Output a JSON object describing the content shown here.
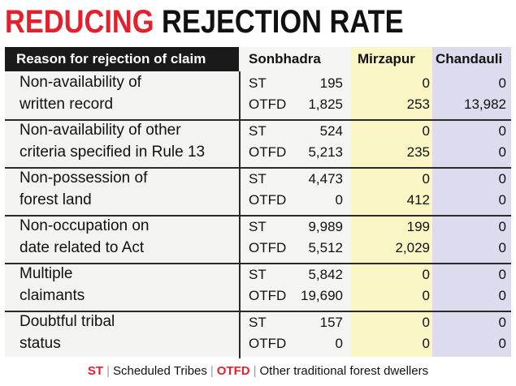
{
  "title": {
    "part1": "REDUCING",
    "part2": "REJECTION RATE"
  },
  "chart_data": {
    "type": "table",
    "title": "REDUCING REJECTION RATE",
    "columns": [
      "Reason for rejection of claim",
      "Sonbhadra",
      "Mirzapur",
      "Chandauli"
    ],
    "rows": [
      {
        "reason": [
          "Non-availability of",
          "written record"
        ],
        "entries": [
          {
            "cat": "ST",
            "sonbhadra": "195",
            "mirzapur": "0",
            "chandauli": "0"
          },
          {
            "cat": "OTFD",
            "sonbhadra": "1,825",
            "mirzapur": "253",
            "chandauli": "13,982"
          }
        ]
      },
      {
        "reason": [
          "Non-availability of other",
          "criteria specified in Rule 13"
        ],
        "entries": [
          {
            "cat": "ST",
            "sonbhadra": "524",
            "mirzapur": "0",
            "chandauli": "0"
          },
          {
            "cat": "OTFD",
            "sonbhadra": "5,213",
            "mirzapur": "235",
            "chandauli": "0"
          }
        ]
      },
      {
        "reason": [
          "Non-possession of",
          "forest land"
        ],
        "entries": [
          {
            "cat": "ST",
            "sonbhadra": "4,473",
            "mirzapur": "0",
            "chandauli": "0"
          },
          {
            "cat": "OTFD",
            "sonbhadra": "0",
            "mirzapur": "412",
            "chandauli": "0"
          }
        ]
      },
      {
        "reason": [
          "Non-occupation on",
          "date related to Act"
        ],
        "entries": [
          {
            "cat": "ST",
            "sonbhadra": "9,989",
            "mirzapur": "199",
            "chandauli": "0"
          },
          {
            "cat": "OTFD",
            "sonbhadra": "5,512",
            "mirzapur": "2,029",
            "chandauli": "0"
          }
        ]
      },
      {
        "reason": [
          "Multiple",
          "claimants"
        ],
        "entries": [
          {
            "cat": "ST",
            "sonbhadra": "5,842",
            "mirzapur": "0",
            "chandauli": "0"
          },
          {
            "cat": "OTFD",
            "sonbhadra": "19,690",
            "mirzapur": "0",
            "chandauli": "0"
          }
        ]
      },
      {
        "reason": [
          "Doubtful tribal",
          "status"
        ],
        "entries": [
          {
            "cat": "ST",
            "sonbhadra": "157",
            "mirzapur": "0",
            "chandauli": "0"
          },
          {
            "cat": "OTFD",
            "sonbhadra": "0",
            "mirzapur": "0",
            "chandauli": "0"
          }
        ]
      }
    ]
  },
  "legend": {
    "st_abbr": "ST",
    "st_text": "Scheduled Tribes",
    "otfd_abbr": "OTFD",
    "otfd_text": "Other traditional forest dwellers",
    "separator": "|"
  },
  "colors": {
    "accent": "#e3202c",
    "header_bg": "#1a1a1a",
    "mirzapur_bg": "#fbf6c6",
    "chandauli_bg": "#dcdcee"
  }
}
